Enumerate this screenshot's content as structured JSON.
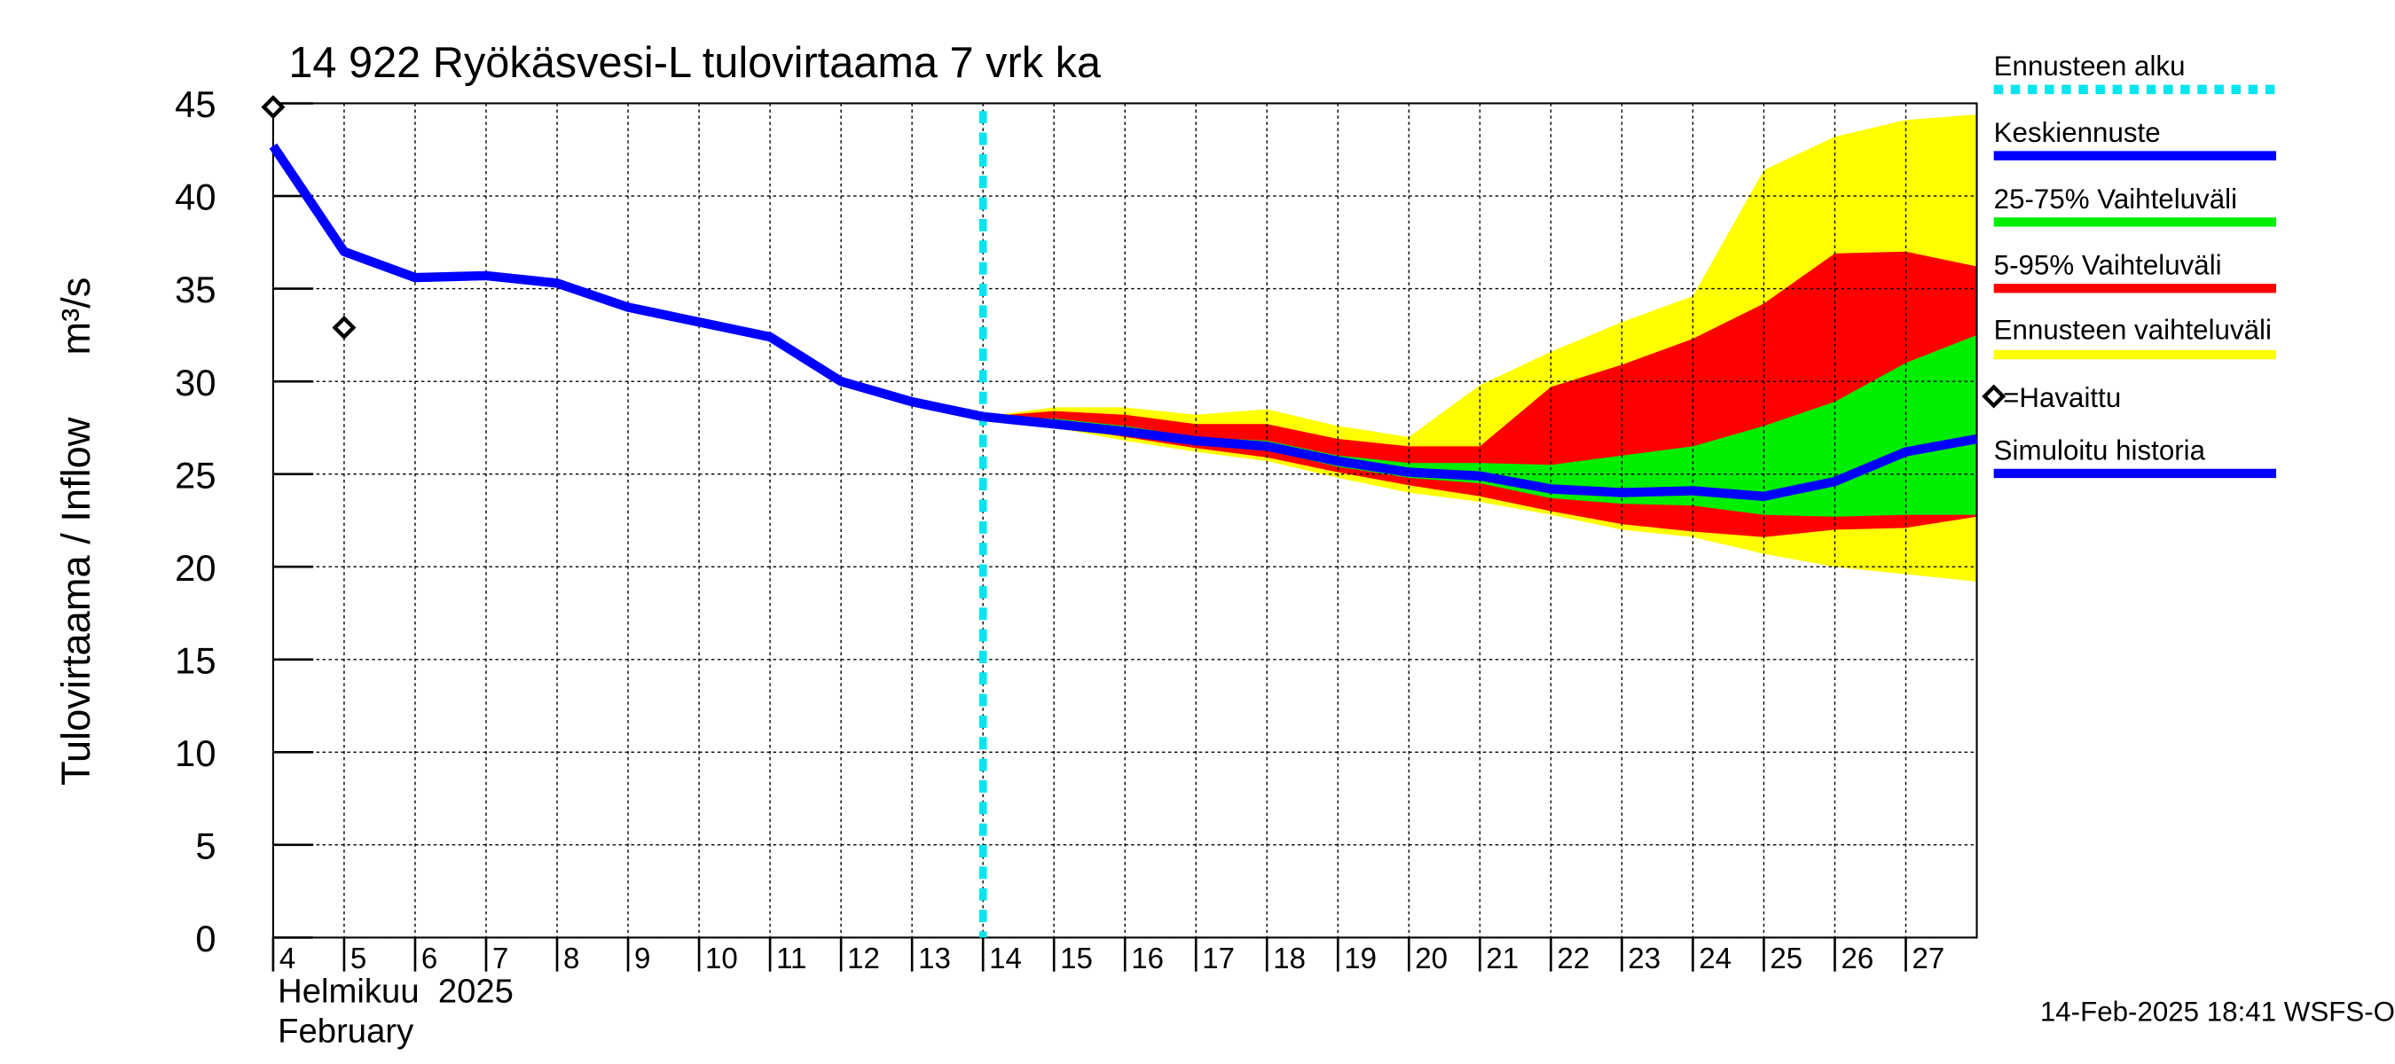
{
  "chart_data": {
    "type": "line",
    "title": "14 922 Ryökäsvesi-L tulovirtaama 7 vrk ka",
    "ylabel": "Tulovirtaama / Inflow",
    "yunit": "m³/s",
    "month_label": "Helmikuu  2025",
    "month_label_en": "February",
    "footer": "14-Feb-2025 18:41 WSFS-O",
    "xlim": [
      4,
      28
    ],
    "ylim": [
      0,
      45
    ],
    "xticks": [
      4,
      5,
      6,
      7,
      8,
      9,
      10,
      11,
      12,
      13,
      14,
      15,
      16,
      17,
      18,
      19,
      20,
      21,
      22,
      23,
      24,
      25,
      26,
      27
    ],
    "yticks": [
      0,
      5,
      10,
      15,
      20,
      25,
      30,
      35,
      40,
      45
    ],
    "grid": true,
    "x": [
      4,
      5,
      6,
      7,
      8,
      9,
      10,
      11,
      12,
      13,
      14,
      15,
      16,
      17,
      18,
      19,
      20,
      21,
      22,
      23,
      24,
      25,
      26,
      27,
      28
    ],
    "forecast_start": {
      "name": "Ennusteen alku",
      "x": 14,
      "color": "#00e5ee"
    },
    "bands": [
      {
        "name": "Ennusteen vaihteluväli",
        "color": "#ffff00",
        "lower": [
          null,
          null,
          null,
          null,
          null,
          null,
          null,
          null,
          null,
          null,
          28.1,
          27.5,
          26.8,
          26.2,
          25.7,
          24.8,
          24.0,
          23.5,
          22.8,
          22.0,
          21.6,
          20.7,
          20.0,
          19.6,
          19.2
        ],
        "upper": [
          null,
          null,
          null,
          null,
          null,
          null,
          null,
          null,
          null,
          null,
          28.1,
          28.6,
          28.6,
          28.2,
          28.5,
          27.6,
          27.0,
          29.8,
          31.6,
          33.2,
          34.6,
          41.4,
          43.2,
          44.1,
          44.4
        ]
      },
      {
        "name": "5-95% Vaihteluväli",
        "color": "#ff0000",
        "lower": [
          null,
          null,
          null,
          null,
          null,
          null,
          null,
          null,
          null,
          null,
          28.1,
          27.6,
          27.0,
          26.4,
          25.9,
          25.1,
          24.4,
          23.8,
          23.0,
          22.3,
          21.9,
          21.6,
          22.0,
          22.1,
          22.7
        ],
        "upper": [
          null,
          null,
          null,
          null,
          null,
          null,
          null,
          null,
          null,
          null,
          28.1,
          28.4,
          28.2,
          27.7,
          27.7,
          26.9,
          26.5,
          26.5,
          29.7,
          30.9,
          32.3,
          34.2,
          36.9,
          37.0,
          36.2
        ]
      },
      {
        "name": "25-75% Vaihteluväli",
        "color": "#00ee00",
        "lower": [
          null,
          null,
          null,
          null,
          null,
          null,
          null,
          null,
          null,
          null,
          28.1,
          27.8,
          27.4,
          26.7,
          26.3,
          25.4,
          24.8,
          24.5,
          23.7,
          23.4,
          23.3,
          22.8,
          22.7,
          22.8,
          22.8
        ],
        "upper": [
          null,
          null,
          null,
          null,
          null,
          null,
          null,
          null,
          null,
          null,
          28.1,
          28.0,
          27.6,
          27.0,
          26.8,
          26.0,
          25.6,
          25.6,
          25.5,
          26.0,
          26.5,
          27.6,
          28.9,
          31.0,
          32.5
        ]
      }
    ],
    "series": [
      {
        "name": "Keskiennuste",
        "color": "#0000ff",
        "values": [
          null,
          null,
          null,
          null,
          null,
          null,
          null,
          null,
          null,
          null,
          28.1,
          27.7,
          27.3,
          26.8,
          26.5,
          25.7,
          25.1,
          24.9,
          24.2,
          24.0,
          24.1,
          23.8,
          24.6,
          26.2,
          26.9
        ]
      },
      {
        "name": "Simuloitu historia",
        "color": "#0000ff",
        "values": [
          42.7,
          37.0,
          35.6,
          35.7,
          35.3,
          34.0,
          33.2,
          32.4,
          30.0,
          28.9,
          28.1,
          null,
          null,
          null,
          null,
          null,
          null,
          null,
          null,
          null,
          null,
          null,
          null,
          null,
          null
        ]
      }
    ],
    "observed": {
      "name": "=Havaittu",
      "x": [
        4,
        5
      ],
      "values": [
        44.8,
        32.9
      ]
    }
  }
}
